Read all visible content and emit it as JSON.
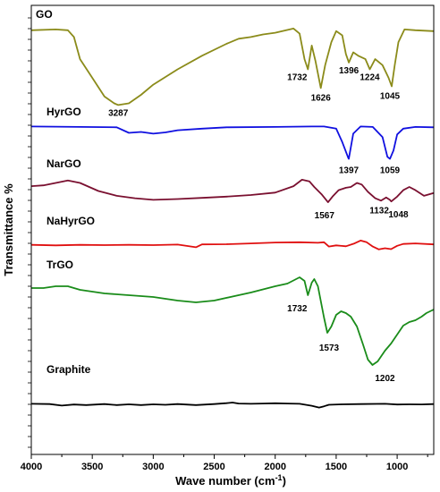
{
  "chart_data": {
    "type": "line",
    "xlabel": "Wave number (cm-1)",
    "ylabel": "Transmittance %",
    "xlim": [
      4000,
      700
    ],
    "x_reversed": true,
    "xticks": [
      4000,
      3500,
      3000,
      2500,
      2000,
      1500,
      1000
    ],
    "grid": false,
    "series": [
      {
        "name": "GO",
        "color": "#8b8b1a",
        "points": [
          [
            4000,
            0.96
          ],
          [
            3800,
            0.97
          ],
          [
            3700,
            0.96
          ],
          [
            3650,
            0.88
          ],
          [
            3600,
            0.62
          ],
          [
            3500,
            0.4
          ],
          [
            3400,
            0.18
          ],
          [
            3320,
            0.1
          ],
          [
            3287,
            0.08
          ],
          [
            3200,
            0.1
          ],
          [
            3100,
            0.2
          ],
          [
            3000,
            0.32
          ],
          [
            2800,
            0.5
          ],
          [
            2600,
            0.66
          ],
          [
            2400,
            0.8
          ],
          [
            2300,
            0.86
          ],
          [
            2200,
            0.88
          ],
          [
            2100,
            0.91
          ],
          [
            2000,
            0.93
          ],
          [
            1850,
            0.98
          ],
          [
            1800,
            0.92
          ],
          [
            1760,
            0.62
          ],
          [
            1732,
            0.5
          ],
          [
            1700,
            0.78
          ],
          [
            1670,
            0.6
          ],
          [
            1626,
            0.28
          ],
          [
            1590,
            0.55
          ],
          [
            1540,
            0.82
          ],
          [
            1500,
            0.95
          ],
          [
            1450,
            0.9
          ],
          [
            1420,
            0.68
          ],
          [
            1396,
            0.58
          ],
          [
            1360,
            0.7
          ],
          [
            1320,
            0.66
          ],
          [
            1260,
            0.62
          ],
          [
            1224,
            0.5
          ],
          [
            1180,
            0.62
          ],
          [
            1120,
            0.55
          ],
          [
            1070,
            0.4
          ],
          [
            1045,
            0.3
          ],
          [
            1020,
            0.55
          ],
          [
            990,
            0.82
          ],
          [
            940,
            0.97
          ],
          [
            850,
            0.96
          ],
          [
            700,
            0.95
          ]
        ]
      },
      {
        "name": "HyrGO",
        "color": "#1010e0",
        "points": [
          [
            4000,
            0.97
          ],
          [
            3600,
            0.96
          ],
          [
            3300,
            0.95
          ],
          [
            3200,
            0.82
          ],
          [
            3100,
            0.84
          ],
          [
            3000,
            0.8
          ],
          [
            2900,
            0.83
          ],
          [
            2800,
            0.88
          ],
          [
            2600,
            0.92
          ],
          [
            2400,
            0.95
          ],
          [
            2000,
            0.96
          ],
          [
            1700,
            0.97
          ],
          [
            1600,
            0.97
          ],
          [
            1500,
            0.92
          ],
          [
            1450,
            0.6
          ],
          [
            1400,
            0.22
          ],
          [
            1397,
            0.2
          ],
          [
            1360,
            0.8
          ],
          [
            1300,
            0.97
          ],
          [
            1200,
            0.96
          ],
          [
            1120,
            0.72
          ],
          [
            1080,
            0.25
          ],
          [
            1059,
            0.2
          ],
          [
            1030,
            0.4
          ],
          [
            1000,
            0.78
          ],
          [
            950,
            0.92
          ],
          [
            850,
            0.96
          ],
          [
            700,
            0.95
          ]
        ]
      },
      {
        "name": "NarGO",
        "color": "#7a1030",
        "points": [
          [
            4000,
            0.82
          ],
          [
            3900,
            0.84
          ],
          [
            3800,
            0.9
          ],
          [
            3700,
            0.96
          ],
          [
            3600,
            0.9
          ],
          [
            3450,
            0.7
          ],
          [
            3300,
            0.58
          ],
          [
            3150,
            0.52
          ],
          [
            3000,
            0.48
          ],
          [
            2800,
            0.5
          ],
          [
            2600,
            0.53
          ],
          [
            2400,
            0.56
          ],
          [
            2200,
            0.6
          ],
          [
            2000,
            0.66
          ],
          [
            1850,
            0.82
          ],
          [
            1780,
            0.98
          ],
          [
            1720,
            0.94
          ],
          [
            1680,
            0.8
          ],
          [
            1620,
            0.62
          ],
          [
            1567,
            0.42
          ],
          [
            1530,
            0.56
          ],
          [
            1480,
            0.72
          ],
          [
            1420,
            0.78
          ],
          [
            1380,
            0.8
          ],
          [
            1330,
            0.9
          ],
          [
            1290,
            0.86
          ],
          [
            1240,
            0.68
          ],
          [
            1180,
            0.52
          ],
          [
            1132,
            0.46
          ],
          [
            1090,
            0.54
          ],
          [
            1060,
            0.48
          ],
          [
            1048,
            0.44
          ],
          [
            1000,
            0.56
          ],
          [
            950,
            0.72
          ],
          [
            900,
            0.8
          ],
          [
            850,
            0.72
          ],
          [
            780,
            0.58
          ],
          [
            700,
            0.65
          ]
        ]
      },
      {
        "name": "NaHyrGO",
        "color": "#e01010",
        "points": [
          [
            4000,
            0.52
          ],
          [
            3800,
            0.48
          ],
          [
            3600,
            0.52
          ],
          [
            3400,
            0.5
          ],
          [
            3200,
            0.52
          ],
          [
            3000,
            0.5
          ],
          [
            2800,
            0.54
          ],
          [
            2650,
            0.35
          ],
          [
            2600,
            0.55
          ],
          [
            2400,
            0.56
          ],
          [
            2200,
            0.62
          ],
          [
            2000,
            0.68
          ],
          [
            1800,
            0.7
          ],
          [
            1650,
            0.66
          ],
          [
            1600,
            0.7
          ],
          [
            1560,
            0.4
          ],
          [
            1500,
            0.48
          ],
          [
            1420,
            0.42
          ],
          [
            1350,
            0.62
          ],
          [
            1300,
            0.82
          ],
          [
            1250,
            0.7
          ],
          [
            1200,
            0.4
          ],
          [
            1150,
            0.2
          ],
          [
            1100,
            0.28
          ],
          [
            1050,
            0.22
          ],
          [
            1000,
            0.45
          ],
          [
            950,
            0.58
          ],
          [
            850,
            0.62
          ],
          [
            700,
            0.55
          ]
        ]
      },
      {
        "name": "TrGO",
        "color": "#1a8c1a",
        "points": [
          [
            4000,
            0.88
          ],
          [
            3900,
            0.88
          ],
          [
            3800,
            0.9
          ],
          [
            3700,
            0.9
          ],
          [
            3600,
            0.86
          ],
          [
            3400,
            0.82
          ],
          [
            3200,
            0.8
          ],
          [
            3000,
            0.78
          ],
          [
            2800,
            0.74
          ],
          [
            2650,
            0.72
          ],
          [
            2500,
            0.74
          ],
          [
            2300,
            0.8
          ],
          [
            2200,
            0.83
          ],
          [
            2000,
            0.9
          ],
          [
            1900,
            0.93
          ],
          [
            1800,
            1.0
          ],
          [
            1760,
            0.96
          ],
          [
            1732,
            0.8
          ],
          [
            1700,
            0.94
          ],
          [
            1680,
            0.98
          ],
          [
            1650,
            0.9
          ],
          [
            1600,
            0.55
          ],
          [
            1573,
            0.38
          ],
          [
            1540,
            0.45
          ],
          [
            1500,
            0.58
          ],
          [
            1460,
            0.62
          ],
          [
            1420,
            0.6
          ],
          [
            1380,
            0.56
          ],
          [
            1330,
            0.45
          ],
          [
            1280,
            0.25
          ],
          [
            1240,
            0.08
          ],
          [
            1202,
            0.02
          ],
          [
            1160,
            0.06
          ],
          [
            1100,
            0.18
          ],
          [
            1050,
            0.26
          ],
          [
            1000,
            0.36
          ],
          [
            950,
            0.46
          ],
          [
            900,
            0.5
          ],
          [
            850,
            0.52
          ],
          [
            800,
            0.56
          ],
          [
            760,
            0.6
          ],
          [
            700,
            0.64
          ]
        ]
      },
      {
        "name": "Graphite",
        "color": "#000000",
        "points": [
          [
            4000,
            0.9
          ],
          [
            3850,
            0.88
          ],
          [
            3750,
            0.76
          ],
          [
            3650,
            0.84
          ],
          [
            3550,
            0.8
          ],
          [
            3400,
            0.88
          ],
          [
            3300,
            0.8
          ],
          [
            3200,
            0.86
          ],
          [
            3100,
            0.8
          ],
          [
            3000,
            0.86
          ],
          [
            2900,
            0.82
          ],
          [
            2800,
            0.88
          ],
          [
            2650,
            0.8
          ],
          [
            2500,
            0.88
          ],
          [
            2400,
            0.95
          ],
          [
            2350,
            1.0
          ],
          [
            2300,
            0.92
          ],
          [
            2200,
            0.9
          ],
          [
            2100,
            0.92
          ],
          [
            2000,
            0.94
          ],
          [
            1900,
            0.92
          ],
          [
            1800,
            0.9
          ],
          [
            1700,
            0.74
          ],
          [
            1640,
            0.6
          ],
          [
            1600,
            0.7
          ],
          [
            1560,
            0.82
          ],
          [
            1450,
            0.86
          ],
          [
            1300,
            0.88
          ],
          [
            1100,
            0.9
          ],
          [
            1000,
            0.84
          ],
          [
            900,
            0.86
          ],
          [
            800,
            0.85
          ],
          [
            700,
            0.88
          ]
        ]
      }
    ],
    "peak_labels": [
      {
        "series": "GO",
        "text": "3287",
        "x": 3287
      },
      {
        "series": "GO",
        "text": "1732",
        "x": 1732
      },
      {
        "series": "GO",
        "text": "1626",
        "x": 1626
      },
      {
        "series": "GO",
        "text": "1396",
        "x": 1396
      },
      {
        "series": "GO",
        "text": "1224",
        "x": 1224
      },
      {
        "series": "GO",
        "text": "1045",
        "x": 1045
      },
      {
        "series": "HyrGO",
        "text": "1397",
        "x": 1397
      },
      {
        "series": "HyrGO",
        "text": "1059",
        "x": 1059
      },
      {
        "series": "NarGO",
        "text": "1567",
        "x": 1567
      },
      {
        "series": "NarGO",
        "text": "1132",
        "x": 1132
      },
      {
        "series": "NarGO",
        "text": "1048",
        "x": 1048
      },
      {
        "series": "TrGO",
        "text": "1732",
        "x": 1732
      },
      {
        "series": "TrGO",
        "text": "1573",
        "x": 1573
      },
      {
        "series": "TrGO",
        "text": "1202",
        "x": 1202
      }
    ]
  }
}
